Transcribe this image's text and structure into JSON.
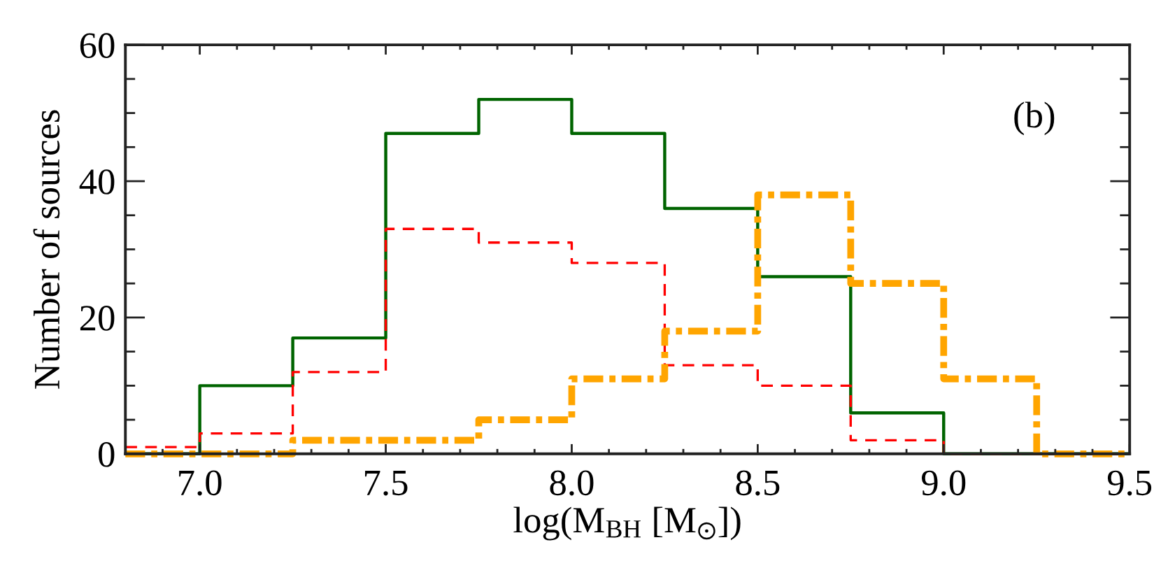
{
  "chart_data": {
    "type": "histogram",
    "xlabel": "log(M$_{BH}$ [M$_{⊙}$])",
    "ylabel": "Number of sources",
    "annotations": [
      "(b)"
    ],
    "bins": [
      6.8,
      7.0,
      7.25,
      7.5,
      7.75,
      8.0,
      8.25,
      8.5,
      8.75,
      9.0,
      9.25,
      9.5
    ],
    "series": [
      {
        "color": "#006400",
        "line_style": "solid",
        "values": [
          0,
          10,
          17,
          47,
          52,
          47,
          36,
          26,
          6,
          0,
          0
        ]
      },
      {
        "color": "#ff0000",
        "line_style": "dashed",
        "values": [
          1,
          3,
          12,
          33,
          31,
          28,
          13,
          10,
          2,
          0,
          0
        ]
      },
      {
        "color": "#ffa500",
        "line_style": "dashdot",
        "values": [
          0,
          0,
          2,
          2,
          5,
          11,
          18,
          38,
          25,
          11,
          0
        ]
      }
    ],
    "xlim": [
      6.8,
      9.5
    ],
    "xticks": [
      {
        "value": 6.9,
        "label": null
      },
      {
        "value": 7.0,
        "label": "7.0"
      },
      {
        "value": 7.1,
        "label": null
      },
      {
        "value": 7.2,
        "label": null
      },
      {
        "value": 7.3,
        "label": null
      },
      {
        "value": 7.4,
        "label": null
      },
      7.5,
      {
        "value": 7.6,
        "label": null
      },
      {
        "value": 7.7,
        "label": null
      },
      {
        "value": 7.8,
        "label": null
      },
      {
        "value": 7.9,
        "label": null
      },
      {
        "value": 8.0,
        "label": "8.0"
      },
      {
        "value": 8.1,
        "label": null
      },
      {
        "value": 8.2,
        "label": null
      },
      {
        "value": 8.3,
        "label": null
      },
      {
        "value": 8.4,
        "label": null
      },
      8.5,
      {
        "value": 8.6,
        "label": null
      },
      {
        "value": 8.7,
        "label": null
      },
      {
        "value": 8.8,
        "label": null
      },
      {
        "value": 8.9,
        "label": null
      },
      {
        "value": 9.0,
        "label": "9.0"
      },
      {
        "value": 9.1,
        "label": null
      },
      {
        "value": 9.2,
        "label": null
      },
      {
        "value": 9.3,
        "label": null
      },
      {
        "value": 9.4,
        "label": null
      },
      9.5
    ],
    "ylim": [
      0,
      60
    ],
    "yticks": [
      0,
      {
        "value": 5,
        "label": null
      },
      {
        "value": 10,
        "label": null
      },
      {
        "value": 15,
        "label": null
      },
      20,
      {
        "value": 25,
        "label": null
      },
      {
        "value": 30,
        "label": null
      },
      {
        "value": 35,
        "label": null
      },
      40,
      {
        "value": 45,
        "label": null
      },
      {
        "value": 50,
        "label": null
      },
      {
        "value": 55,
        "label": null
      },
      60
    ]
  }
}
